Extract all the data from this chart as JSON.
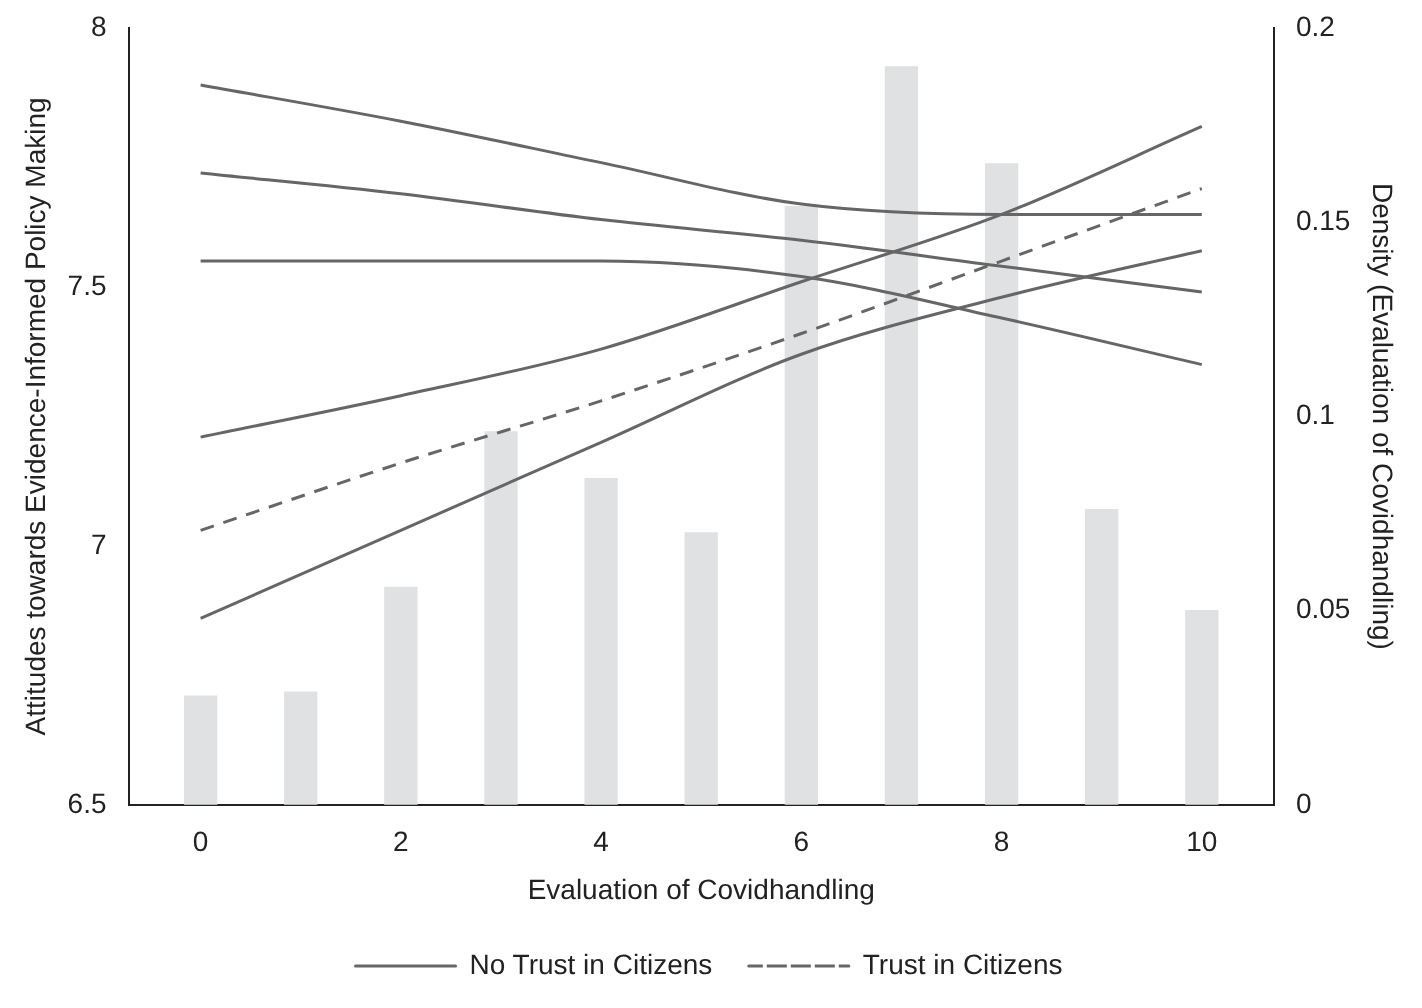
{
  "chart_data": {
    "type": "line",
    "xlabel": "Evaluation of Covidhandling",
    "ylabel": "Attitudes towards Evidence-Informed Policy Making",
    "y2label": "Density (Evaluation of Covidhandling)",
    "xlim": [
      -0.72,
      10.72
    ],
    "xticks": [
      0,
      2,
      4,
      6,
      8,
      10
    ],
    "ylim": [
      6.5,
      8
    ],
    "yticks": [
      6.5,
      7,
      7.5,
      8
    ],
    "y2lim": [
      0,
      0.2
    ],
    "y2ticks": [
      0,
      0.05,
      0.1,
      0.15,
      0.2
    ],
    "legend": "bottom",
    "series": [
      {
        "type": "bar",
        "axis": "y2",
        "color": "#e0e1e3",
        "x": [
          0,
          1,
          2,
          3,
          4,
          5,
          6,
          7,
          8,
          9,
          10
        ],
        "values": [
          0.028,
          0.029,
          0.056,
          0.096,
          0.084,
          0.07,
          0.154,
          0.19,
          0.165,
          0.076,
          0.05
        ]
      },
      {
        "name": "No Trust in Citizens",
        "line_style": "solid",
        "color": "#666666",
        "x": [
          0,
          2,
          4,
          6,
          8,
          10
        ],
        "values": [
          7.72,
          7.68,
          7.63,
          7.59,
          7.54,
          7.49
        ]
      },
      {
        "line_style": "solid",
        "color": "#666666",
        "x": [
          0,
          2,
          4,
          6,
          8,
          10
        ],
        "values": [
          7.55,
          7.55,
          7.55,
          7.52,
          7.44,
          7.35
        ]
      },
      {
        "line_style": "solid",
        "color": "#666666",
        "x": [
          0,
          2,
          4,
          6,
          8,
          10
        ],
        "values": [
          7.89,
          7.82,
          7.74,
          7.66,
          7.64,
          7.64
        ]
      },
      {
        "name": "Trust in Citizens",
        "line_style": "dashed",
        "color": "#666666",
        "x": [
          0,
          2,
          4,
          6,
          8,
          10
        ],
        "values": [
          7.03,
          7.16,
          7.28,
          7.41,
          7.55,
          7.69
        ]
      },
      {
        "line_style": "solid",
        "color": "#666666",
        "x": [
          0,
          2,
          4,
          6,
          8,
          10
        ],
        "values": [
          6.86,
          7.03,
          7.2,
          7.37,
          7.48,
          7.57
        ]
      },
      {
        "line_style": "solid",
        "color": "#666666",
        "x": [
          0,
          2,
          4,
          6,
          8,
          10
        ],
        "values": [
          7.21,
          7.29,
          7.38,
          7.51,
          7.64,
          7.81
        ]
      }
    ]
  }
}
